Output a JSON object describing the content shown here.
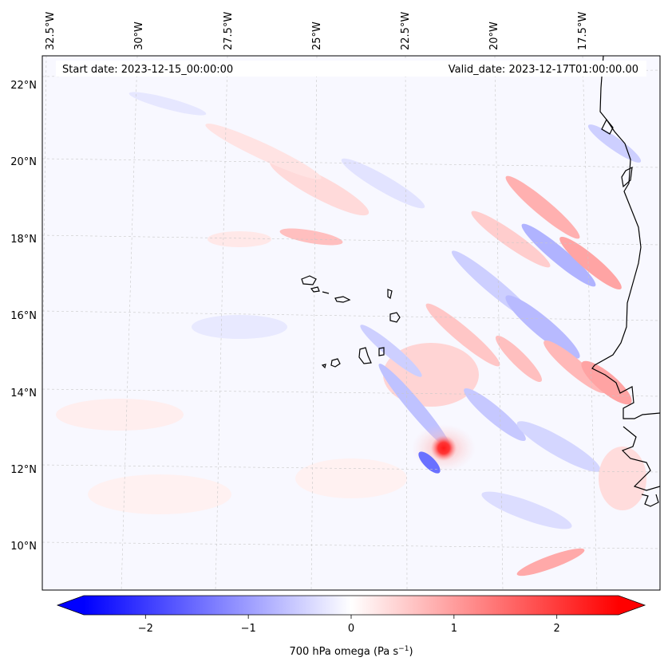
{
  "header": {
    "start_date": "Start date: 2023-12-15_00:00:00",
    "valid_date": "Valid_date: 2023-12-17T01:00:00.00"
  },
  "map": {
    "longitude_labels": [
      {
        "lon": -32.5,
        "label": "32.5°W"
      },
      {
        "lon": -30.0,
        "label": "30°W"
      },
      {
        "lon": -27.5,
        "label": "27.5°W"
      },
      {
        "lon": -25.0,
        "label": "25°W"
      },
      {
        "lon": -22.5,
        "label": "22.5°W"
      },
      {
        "lon": -20.0,
        "label": "20°W"
      },
      {
        "lon": -17.5,
        "label": "17.5°W"
      }
    ],
    "latitude_labels": [
      {
        "lat": 22,
        "label": "22°N"
      },
      {
        "lat": 20,
        "label": "20°N"
      },
      {
        "lat": 18,
        "label": "18°N"
      },
      {
        "lat": 16,
        "label": "16°N"
      },
      {
        "lat": 14,
        "label": "14°N"
      },
      {
        "lat": 12,
        "label": "12°N"
      },
      {
        "lat": 10,
        "label": "10°N"
      }
    ],
    "field_max_feature": {
      "lon": -21.6,
      "lat": 12.6,
      "value": 2.5
    }
  },
  "colorbar": {
    "label_main": "700 hPa omega (Pa s",
    "label_exp": "−1",
    "label_end": ")",
    "ticks": [
      {
        "value": -2,
        "label": "−2"
      },
      {
        "value": -1,
        "label": "−1"
      },
      {
        "value": 0,
        "label": "0"
      },
      {
        "value": 1,
        "label": "1"
      },
      {
        "value": 2,
        "label": "2"
      }
    ],
    "range": [
      -2.6,
      2.6
    ],
    "colors": {
      "negative": "#0000ff",
      "zero": "#ffffff",
      "positive": "#ff0000"
    }
  }
}
